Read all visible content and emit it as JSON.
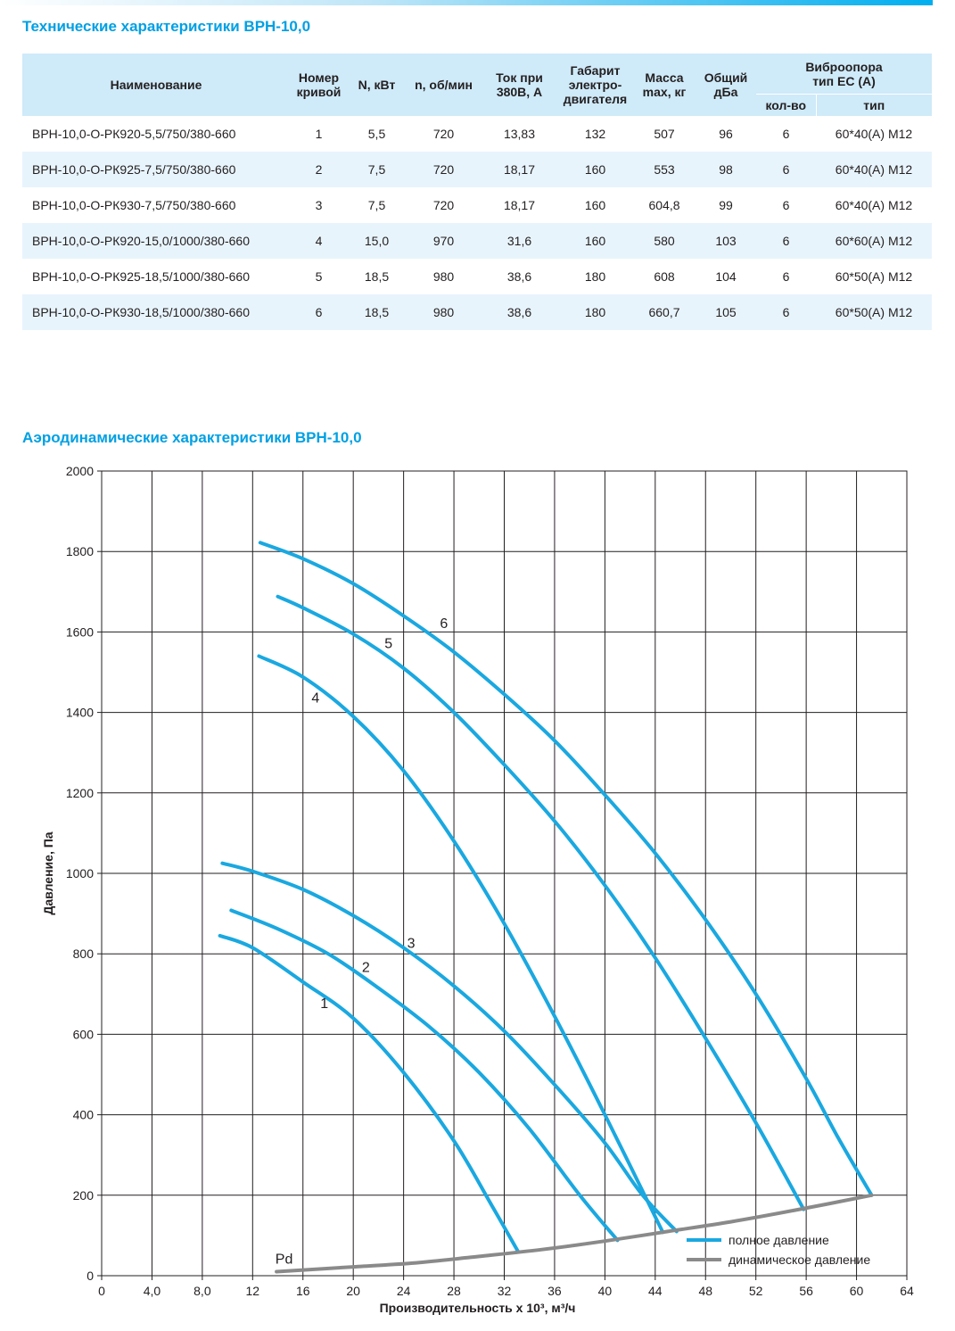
{
  "tech": {
    "title": "Технические характеристики ВРН-10,0",
    "headers": {
      "name": "Наименование",
      "curve_line1": "Номер",
      "curve_line2": "кривой",
      "power": "N, кВт",
      "rpm": "n, об/мин",
      "current_line1": "Ток при",
      "current_line2": "380В, А",
      "frame_line1": "Габарит",
      "frame_line2": "электро-",
      "frame_line3": "двигателя",
      "mass_line1": "Масса",
      "mass_line2": "max, кг",
      "noise_line1": "Общий",
      "noise_line2": "дБа",
      "vib_line1": "Виброопора",
      "vib_line2": "тип ЕС (А)",
      "vib_count": "кол-во",
      "vib_type": "тип"
    },
    "rows": [
      [
        "ВРН-10,0-О-РК920-5,5/750/380-660",
        "1",
        "5,5",
        "720",
        "13,83",
        "132",
        "507",
        "96",
        "6",
        "60*40(А) М12"
      ],
      [
        "ВРН-10,0-О-РК925-7,5/750/380-660",
        "2",
        "7,5",
        "720",
        "18,17",
        "160",
        "553",
        "98",
        "6",
        "60*40(А) М12"
      ],
      [
        "ВРН-10,0-О-РК930-7,5/750/380-660",
        "3",
        "7,5",
        "720",
        "18,17",
        "160",
        "604,8",
        "99",
        "6",
        "60*40(А) М12"
      ],
      [
        "ВРН-10,0-О-РК920-15,0/1000/380-660",
        "4",
        "15,0",
        "970",
        "31,6",
        "160",
        "580",
        "103",
        "6",
        "60*60(А) М12"
      ],
      [
        "ВРН-10,0-О-РК925-18,5/1000/380-660",
        "5",
        "18,5",
        "980",
        "38,6",
        "180",
        "608",
        "104",
        "6",
        "60*50(А) М12"
      ],
      [
        "ВРН-10,0-О-РК930-18,5/1000/380-660",
        "6",
        "18,5",
        "980",
        "38,6",
        "180",
        "660,7",
        "105",
        "6",
        "60*50(А) М12"
      ]
    ]
  },
  "aero": {
    "title": "Аэродинамические характеристики ВРН-10,0"
  },
  "chart_data": {
    "type": "line",
    "xlabel": "Производительность x 10³, м³/ч",
    "ylabel": "Давление, Па",
    "xlim": [
      0,
      64
    ],
    "ylim": [
      0,
      2000
    ],
    "x_ticks": [
      0,
      4,
      8,
      12,
      16,
      20,
      24,
      28,
      32,
      36,
      40,
      44,
      48,
      52,
      56,
      60,
      64
    ],
    "x_tick_labels": [
      "0",
      "4,0",
      "8,0",
      "12",
      "16",
      "20",
      "24",
      "28",
      "32",
      "36",
      "40",
      "44",
      "48",
      "52",
      "56",
      "60",
      "64"
    ],
    "y_ticks": [
      0,
      200,
      400,
      600,
      800,
      1000,
      1200,
      1400,
      1600,
      1800,
      2000
    ],
    "y_tick_labels": [
      "0",
      "200",
      "400",
      "600",
      "800",
      "1000",
      "1200",
      "1400",
      "1600",
      "1800",
      "2000"
    ],
    "grid": true,
    "legend_position": "bottom-right",
    "colors": {
      "full": "#1aa8e0",
      "dynamic": "#8a8a8a"
    },
    "legend": [
      {
        "label": "полное давление",
        "style": "full"
      },
      {
        "label": "динамическое давление",
        "style": "dynamic"
      }
    ],
    "series": [
      {
        "curve_label": "1",
        "style": "full",
        "label_at": [
          17.7,
          665
        ],
        "points": [
          [
            9.4,
            845
          ],
          [
            12,
            815
          ],
          [
            16,
            730
          ],
          [
            20,
            640
          ],
          [
            24,
            505
          ],
          [
            28,
            335
          ],
          [
            31,
            175
          ],
          [
            33.1,
            60
          ]
        ]
      },
      {
        "curve_label": "2",
        "style": "full",
        "label_at": [
          21,
          755
        ],
        "points": [
          [
            10.3,
            908
          ],
          [
            14,
            862
          ],
          [
            18,
            800
          ],
          [
            22,
            715
          ],
          [
            26,
            620
          ],
          [
            30,
            505
          ],
          [
            34,
            365
          ],
          [
            38,
            200
          ],
          [
            41,
            88
          ]
        ]
      },
      {
        "curve_label": "3",
        "style": "full",
        "label_at": [
          24.6,
          815
        ],
        "points": [
          [
            9.6,
            1025
          ],
          [
            12,
            1005
          ],
          [
            16,
            960
          ],
          [
            20,
            895
          ],
          [
            24,
            815
          ],
          [
            28,
            720
          ],
          [
            32,
            608
          ],
          [
            36,
            475
          ],
          [
            40,
            330
          ],
          [
            43,
            200
          ],
          [
            45.7,
            110
          ]
        ]
      },
      {
        "curve_label": "4",
        "style": "full",
        "label_at": [
          17,
          1425
        ],
        "points": [
          [
            12.5,
            1540
          ],
          [
            16,
            1488
          ],
          [
            20,
            1390
          ],
          [
            24,
            1255
          ],
          [
            28,
            1080
          ],
          [
            32,
            875
          ],
          [
            36,
            645
          ],
          [
            40,
            400
          ],
          [
            44.6,
            108
          ]
        ]
      },
      {
        "curve_label": "5",
        "style": "full",
        "label_at": [
          22.8,
          1560
        ],
        "points": [
          [
            14,
            1688
          ],
          [
            16,
            1660
          ],
          [
            20,
            1595
          ],
          [
            24,
            1510
          ],
          [
            28,
            1400
          ],
          [
            32,
            1270
          ],
          [
            36,
            1130
          ],
          [
            40,
            970
          ],
          [
            44,
            790
          ],
          [
            48,
            590
          ],
          [
            52,
            380
          ],
          [
            55.8,
            165
          ]
        ]
      },
      {
        "curve_label": "6",
        "style": "full",
        "label_at": [
          27.2,
          1610
        ],
        "points": [
          [
            12.6,
            1822
          ],
          [
            16,
            1782
          ],
          [
            20,
            1720
          ],
          [
            24,
            1640
          ],
          [
            28,
            1550
          ],
          [
            32,
            1445
          ],
          [
            36,
            1330
          ],
          [
            40,
            1195
          ],
          [
            44,
            1050
          ],
          [
            48,
            885
          ],
          [
            52,
            700
          ],
          [
            56,
            490
          ],
          [
            58.5,
            345
          ],
          [
            61.2,
            200
          ]
        ]
      },
      {
        "curve_label": "Pd",
        "style": "dynamic",
        "label_at": [
          14.5,
          30
        ],
        "points": [
          [
            13.9,
            10
          ],
          [
            20,
            22
          ],
          [
            25,
            32
          ],
          [
            30,
            48
          ],
          [
            35,
            65
          ],
          [
            40,
            86
          ],
          [
            45,
            110
          ],
          [
            50,
            134
          ],
          [
            55,
            162
          ],
          [
            61.2,
            200
          ]
        ]
      }
    ]
  }
}
